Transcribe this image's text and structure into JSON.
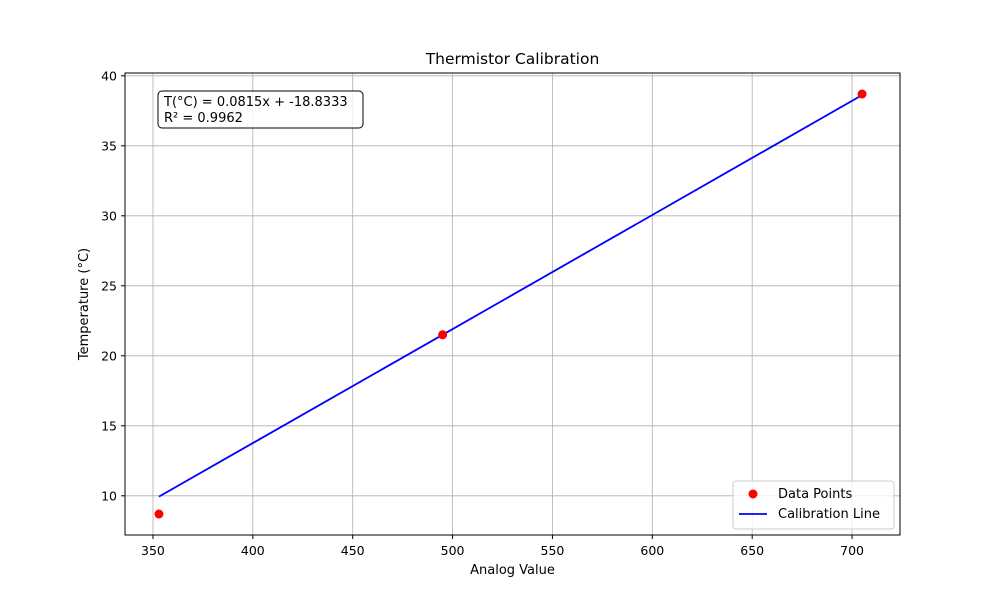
{
  "chart_data": {
    "type": "scatter",
    "title": "Thermistor Calibration",
    "xlabel": "Analog Value",
    "ylabel": "Temperature (°C)",
    "xlim": [
      336,
      724
    ],
    "ylim": [
      7.2,
      40.2
    ],
    "x_ticks": [
      350,
      400,
      450,
      500,
      550,
      600,
      650,
      700
    ],
    "y_ticks": [
      10,
      15,
      20,
      25,
      30,
      35,
      40
    ],
    "grid": true,
    "legend_position": "bottom-right",
    "series": [
      {
        "name": "Data Points",
        "kind": "scatter",
        "color": "#ff0000",
        "x": [
          353,
          495,
          705
        ],
        "y": [
          8.7,
          21.5,
          38.7
        ]
      },
      {
        "name": "Calibration Line",
        "kind": "line",
        "color": "#0000ff",
        "x": [
          353,
          495,
          705
        ],
        "y": [
          9.94,
          21.5,
          38.62
        ]
      }
    ],
    "annotation": {
      "lines": [
        "T(°C) = 0.0815x + -18.8333",
        "R² = 0.9962"
      ],
      "position": "top-left"
    }
  }
}
